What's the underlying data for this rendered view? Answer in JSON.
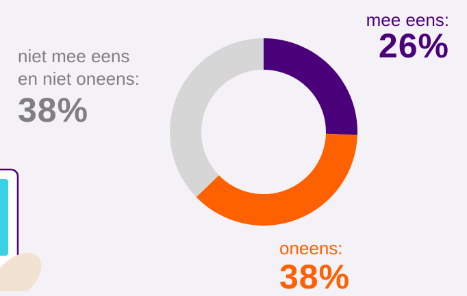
{
  "chart_data": {
    "type": "pie",
    "donut": true,
    "categories": [
      "mee eens:",
      "oneens:",
      "niet mee eens en niet oneens:"
    ],
    "values": [
      26,
      38,
      38
    ],
    "value_labels": [
      "26%",
      "38%",
      "38%"
    ],
    "colors": [
      "#4a0079",
      "#ff6000",
      "#d6d6d6"
    ],
    "label_colors": [
      "#4a0079",
      "#ff6000",
      "#808080"
    ],
    "neutral_label_lines": [
      "niet mee eens",
      "en niet oneens:"
    ]
  },
  "colors": {
    "background": "#f4f1f7",
    "phone_frame": "#4a0079",
    "phone_screen": "#3ad0e6",
    "hand": "#f2e2d2"
  },
  "illustration": {
    "icon": "phone-in-hand-icon"
  }
}
